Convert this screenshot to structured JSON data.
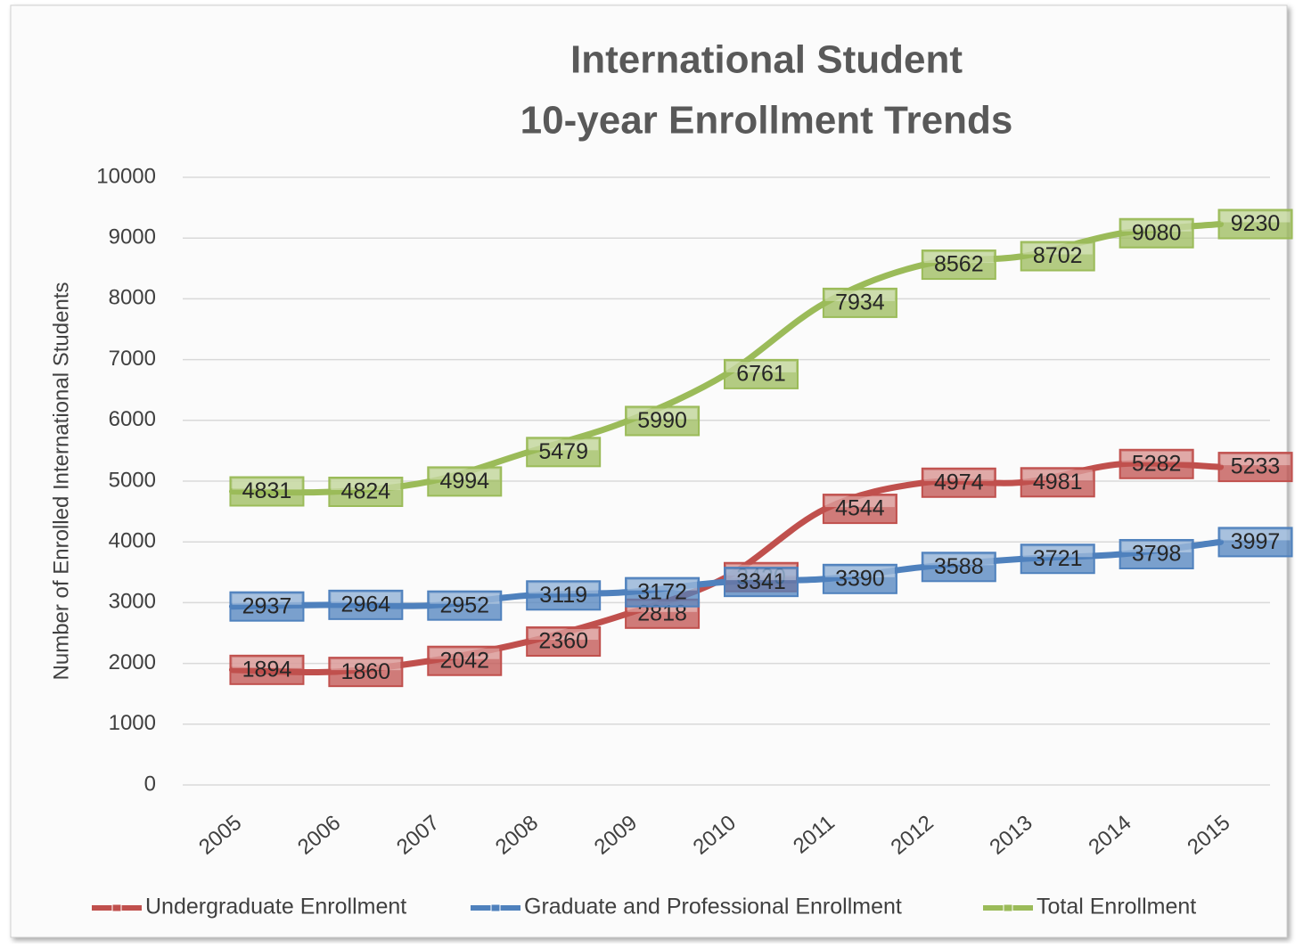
{
  "chart_data": {
    "type": "line",
    "title": "International Student",
    "subtitle": "10-year Enrollment Trends",
    "y_label": "Number of Enrolled International Students",
    "categories": [
      "2005",
      "2006",
      "2007",
      "2008",
      "2009",
      "2010",
      "2011",
      "2012",
      "2013",
      "2014",
      "2015"
    ],
    "series": [
      {
        "name": "Undergraduate Enrollment",
        "color": "#c0504d",
        "values": [
          1894,
          1860,
          2042,
          2360,
          2818,
          3420,
          4544,
          4974,
          4981,
          5282,
          5233
        ]
      },
      {
        "name": "Graduate and Professional Enrollment",
        "color": "#4f81bd",
        "values": [
          2937,
          2964,
          2952,
          3119,
          3172,
          3341,
          3390,
          3588,
          3721,
          3798,
          3997
        ]
      },
      {
        "name": "Total Enrollment",
        "color": "#9bbb59",
        "values": [
          4831,
          4824,
          4994,
          5479,
          5990,
          6761,
          7934,
          8562,
          8702,
          9080,
          9230
        ]
      }
    ],
    "ylim": [
      0,
      10000
    ],
    "yticks": [
      0,
      1000,
      2000,
      3000,
      4000,
      5000,
      6000,
      7000,
      8000,
      9000,
      10000
    ],
    "grid": true,
    "legend": "bottom"
  }
}
